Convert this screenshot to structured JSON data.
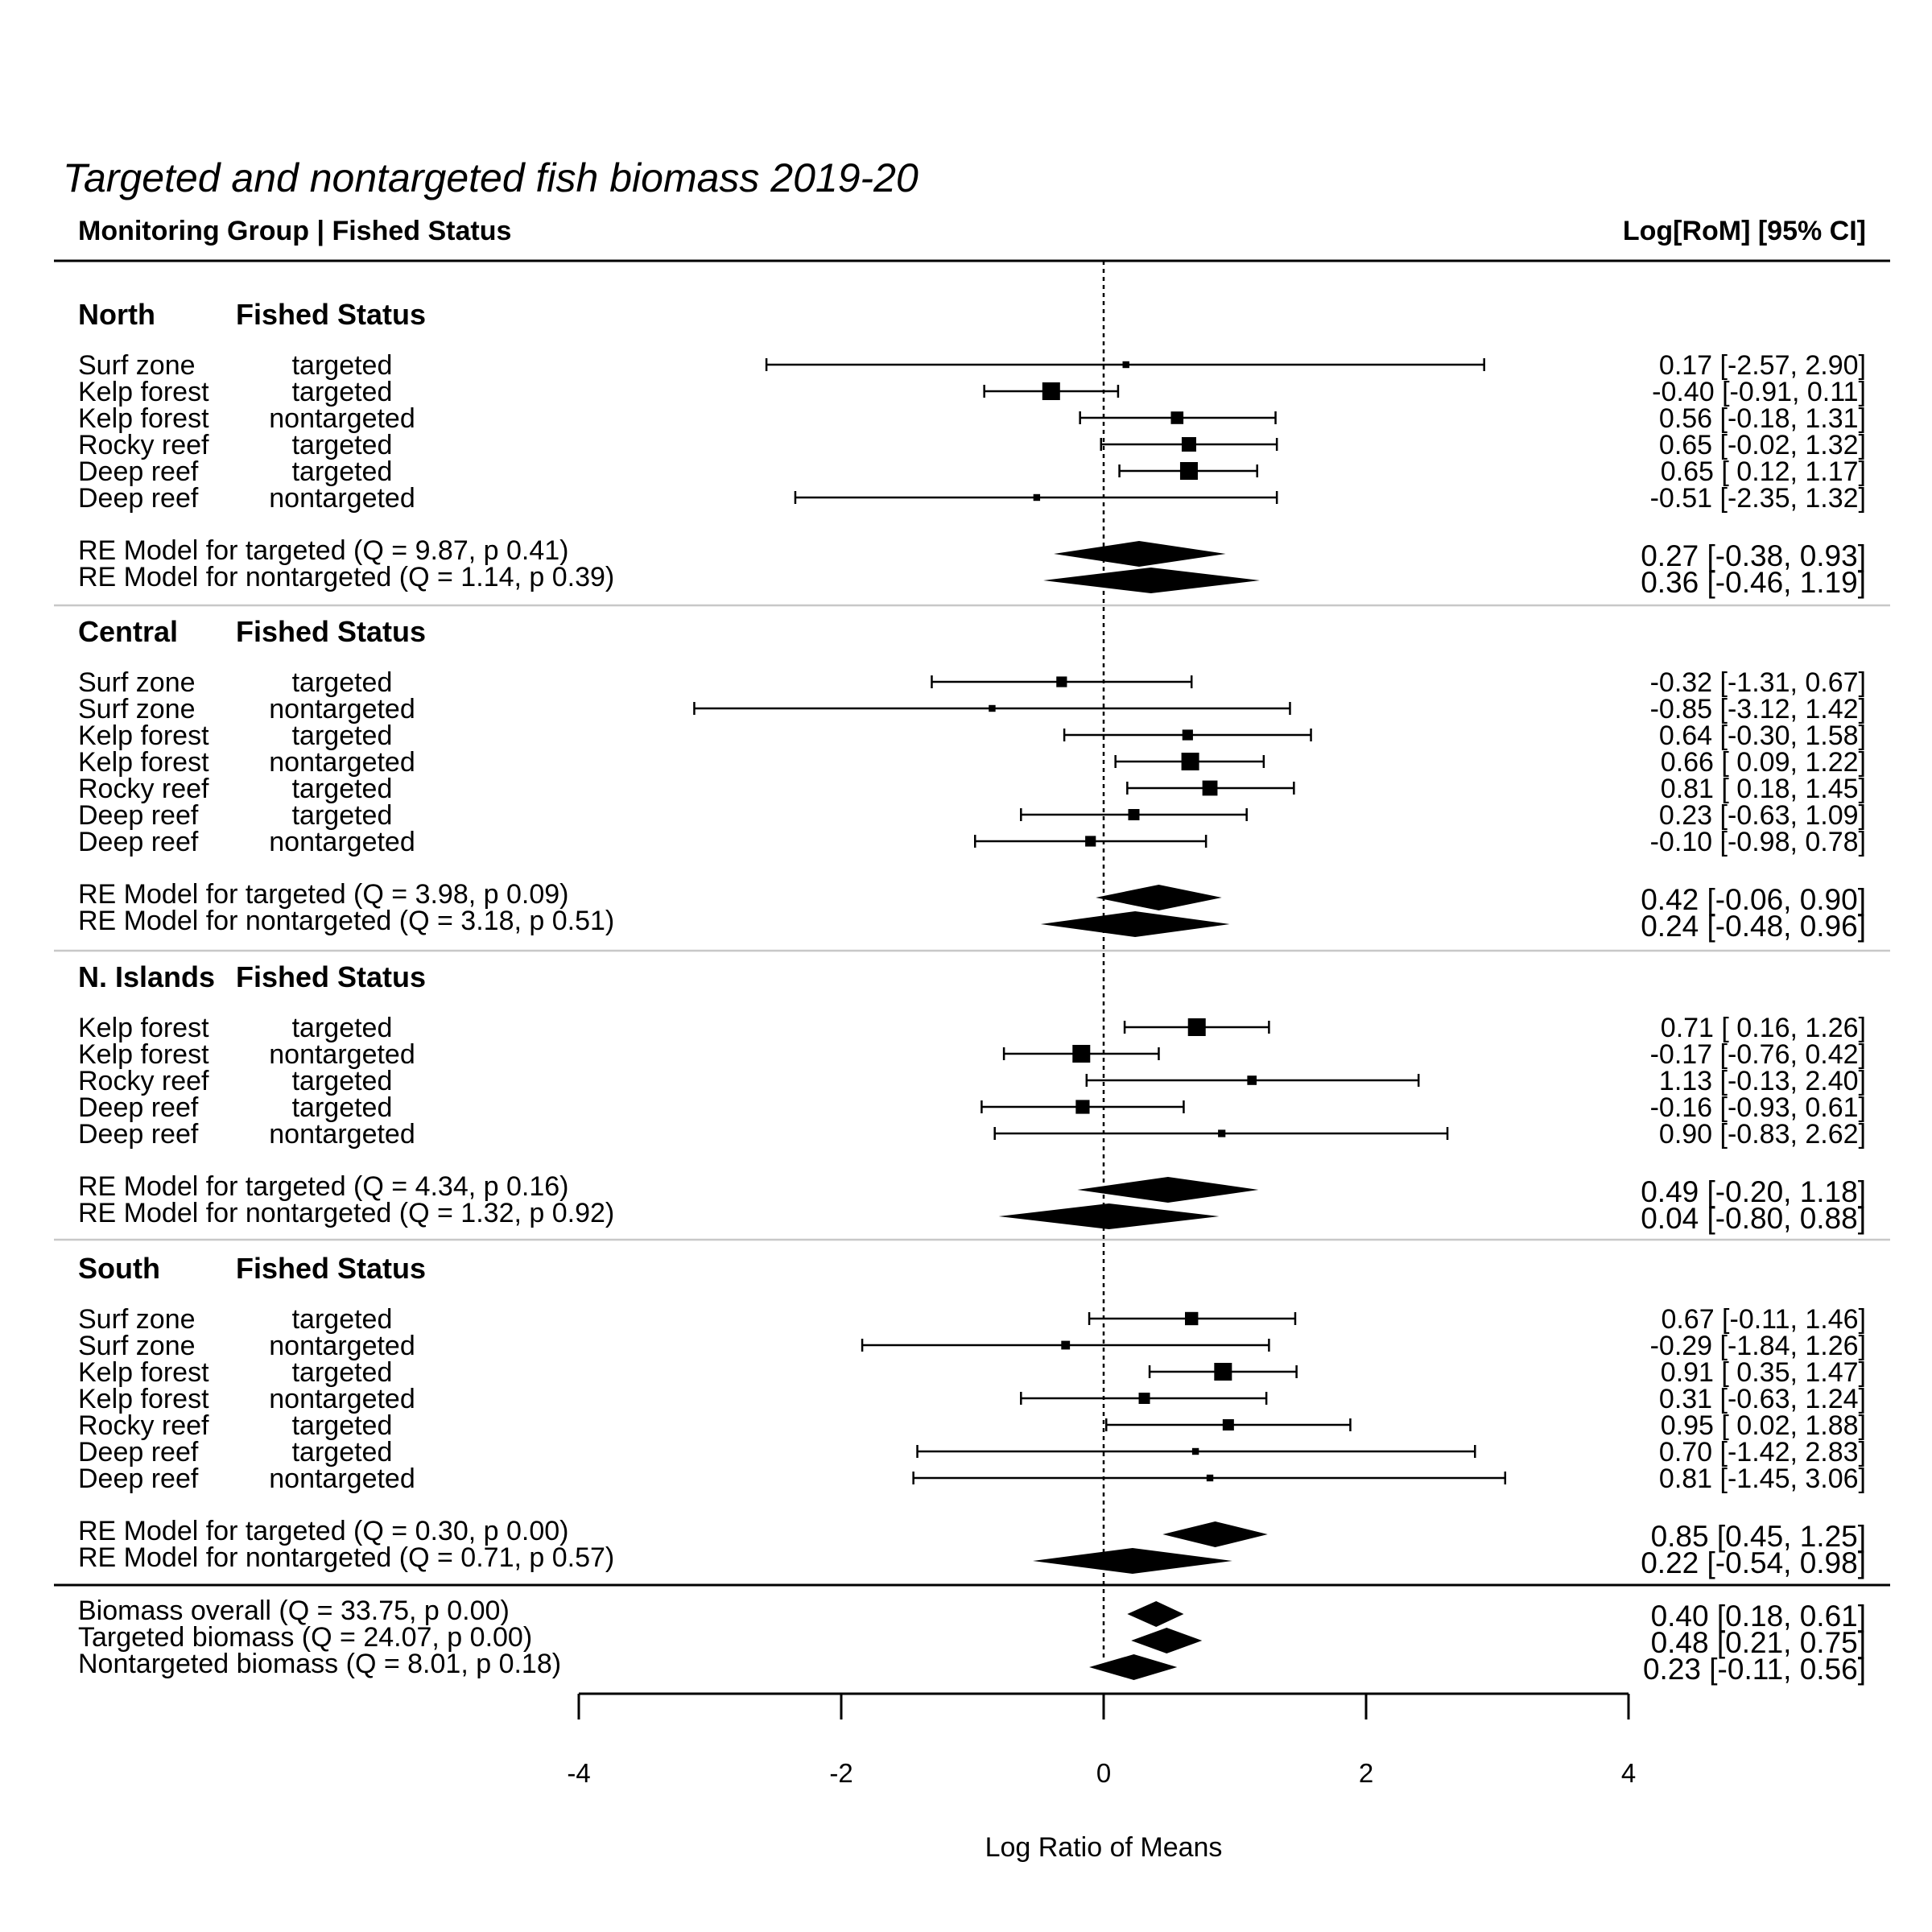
{
  "chart_data": {
    "type": "forest",
    "title": "Targeted and nontargeted fish biomass 2019-20",
    "header_left": "Monitoring Group | Fished Status",
    "header_right": "Log[RoM] [95% CI]",
    "xlabel": "Log Ratio of Means",
    "xlim": [
      -4,
      4
    ],
    "xticks": [
      "-4",
      "-2",
      "0",
      "2",
      "4"
    ],
    "reference_line": 0,
    "groups": [
      {
        "name": "North",
        "subheader": "Fished Status",
        "studies": [
          {
            "habitat": "Surf zone",
            "status": "targeted",
            "est": 0.17,
            "lo": -2.57,
            "hi": 2.9,
            "label": "0.17 [-2.57, 2.90]",
            "w": 0.15
          },
          {
            "habitat": "Kelp forest",
            "status": "targeted",
            "est": -0.4,
            "lo": -0.91,
            "hi": 0.11,
            "label": "-0.40 [-0.91, 0.11]",
            "w": 1.0
          },
          {
            "habitat": "Kelp forest",
            "status": "nontargeted",
            "est": 0.56,
            "lo": -0.18,
            "hi": 1.31,
            "label": "0.56 [-0.18, 1.31]",
            "w": 0.6
          },
          {
            "habitat": "Rocky reef",
            "status": "targeted",
            "est": 0.65,
            "lo": -0.02,
            "hi": 1.32,
            "label": "0.65 [-0.02, 1.32]",
            "w": 0.75
          },
          {
            "habitat": "Deep reef",
            "status": "targeted",
            "est": 0.65,
            "lo": 0.12,
            "hi": 1.17,
            "label": "0.65 [ 0.12, 1.17]",
            "w": 1.0
          },
          {
            "habitat": "Deep reef",
            "status": "nontargeted",
            "est": -0.51,
            "lo": -2.35,
            "hi": 1.32,
            "label": "-0.51 [-2.35, 1.32]",
            "w": 0.15
          }
        ],
        "models": [
          {
            "label": "RE Model for targeted (Q = 9.87, p 0.41)",
            "est": 0.27,
            "lo": -0.38,
            "hi": 0.93,
            "ci": "0.27 [-0.38, 0.93]"
          },
          {
            "label": "RE Model for nontargeted (Q = 1.14, p 0.39)",
            "est": 0.36,
            "lo": -0.46,
            "hi": 1.19,
            "ci": "0.36 [-0.46, 1.19]"
          }
        ]
      },
      {
        "name": "Central",
        "subheader": "Fished Status",
        "studies": [
          {
            "habitat": "Surf zone",
            "status": "targeted",
            "est": -0.32,
            "lo": -1.31,
            "hi": 0.67,
            "label": "-0.32 [-1.31, 0.67]",
            "w": 0.45
          },
          {
            "habitat": "Surf zone",
            "status": "nontargeted",
            "est": -0.85,
            "lo": -3.12,
            "hi": 1.42,
            "label": "-0.85 [-3.12, 1.42]",
            "w": 0.15
          },
          {
            "habitat": "Kelp forest",
            "status": "targeted",
            "est": 0.64,
            "lo": -0.3,
            "hi": 1.58,
            "label": "0.64 [-0.30, 1.58]",
            "w": 0.45
          },
          {
            "habitat": "Kelp forest",
            "status": "nontargeted",
            "est": 0.66,
            "lo": 0.09,
            "hi": 1.22,
            "label": "0.66 [ 0.09, 1.22]",
            "w": 1.0
          },
          {
            "habitat": "Rocky reef",
            "status": "targeted",
            "est": 0.81,
            "lo": 0.18,
            "hi": 1.45,
            "label": "0.81 [ 0.18, 1.45]",
            "w": 0.8
          },
          {
            "habitat": "Deep reef",
            "status": "targeted",
            "est": 0.23,
            "lo": -0.63,
            "hi": 1.09,
            "label": "0.23 [-0.63, 1.09]",
            "w": 0.5
          },
          {
            "habitat": "Deep reef",
            "status": "nontargeted",
            "est": -0.1,
            "lo": -0.98,
            "hi": 0.78,
            "label": "-0.10 [-0.98, 0.78]",
            "w": 0.45
          }
        ],
        "models": [
          {
            "label": "RE Model for targeted (Q = 3.98, p 0.09)",
            "est": 0.42,
            "lo": -0.06,
            "hi": 0.9,
            "ci": "0.42 [-0.06, 0.90]"
          },
          {
            "label": "RE Model for nontargeted (Q = 3.18, p 0.51)",
            "est": 0.24,
            "lo": -0.48,
            "hi": 0.96,
            "ci": "0.24 [-0.48, 0.96]"
          }
        ]
      },
      {
        "name": "N. Islands",
        "subheader": "Fished Status",
        "studies": [
          {
            "habitat": "Kelp forest",
            "status": "targeted",
            "est": 0.71,
            "lo": 0.16,
            "hi": 1.26,
            "label": "0.71 [ 0.16, 1.26]",
            "w": 1.0
          },
          {
            "habitat": "Kelp forest",
            "status": "nontargeted",
            "est": -0.17,
            "lo": -0.76,
            "hi": 0.42,
            "label": "-0.17 [-0.76, 0.42]",
            "w": 1.0
          },
          {
            "habitat": "Rocky reef",
            "status": "targeted",
            "est": 1.13,
            "lo": -0.13,
            "hi": 2.4,
            "label": "1.13 [-0.13, 2.40]",
            "w": 0.35
          },
          {
            "habitat": "Deep reef",
            "status": "targeted",
            "est": -0.16,
            "lo": -0.93,
            "hi": 0.61,
            "label": "-0.16 [-0.93, 0.61]",
            "w": 0.7
          },
          {
            "habitat": "Deep reef",
            "status": "nontargeted",
            "est": 0.9,
            "lo": -0.83,
            "hi": 2.62,
            "label": "0.90 [-0.83, 2.62]",
            "w": 0.2
          }
        ],
        "models": [
          {
            "label": "RE Model for targeted (Q = 4.34, p 0.16)",
            "est": 0.49,
            "lo": -0.2,
            "hi": 1.18,
            "ci": "0.49 [-0.20, 1.18]"
          },
          {
            "label": "RE Model for nontargeted (Q = 1.32, p 0.92)",
            "est": 0.04,
            "lo": -0.8,
            "hi": 0.88,
            "ci": "0.04 [-0.80, 0.88]"
          }
        ]
      },
      {
        "name": "South",
        "subheader": "Fished Status",
        "studies": [
          {
            "habitat": "Surf zone",
            "status": "targeted",
            "est": 0.67,
            "lo": -0.11,
            "hi": 1.46,
            "label": "0.67 [-0.11, 1.46]",
            "w": 0.65
          },
          {
            "habitat": "Surf zone",
            "status": "nontargeted",
            "est": -0.29,
            "lo": -1.84,
            "hi": 1.26,
            "label": "-0.29 [-1.84, 1.26]",
            "w": 0.3
          },
          {
            "habitat": "Kelp forest",
            "status": "targeted",
            "est": 0.91,
            "lo": 0.35,
            "hi": 1.47,
            "label": "0.91 [ 0.35, 1.47]",
            "w": 1.0
          },
          {
            "habitat": "Kelp forest",
            "status": "nontargeted",
            "est": 0.31,
            "lo": -0.63,
            "hi": 1.24,
            "label": "0.31 [-0.63, 1.24]",
            "w": 0.5
          },
          {
            "habitat": "Rocky reef",
            "status": "targeted",
            "est": 0.95,
            "lo": 0.02,
            "hi": 1.88,
            "label": "0.95 [ 0.02, 1.88]",
            "w": 0.5
          },
          {
            "habitat": "Deep reef",
            "status": "targeted",
            "est": 0.7,
            "lo": -1.42,
            "hi": 2.83,
            "label": "0.70 [-1.42, 2.83]",
            "w": 0.15
          },
          {
            "habitat": "Deep reef",
            "status": "nontargeted",
            "est": 0.81,
            "lo": -1.45,
            "hi": 3.06,
            "label": "0.81 [-1.45, 3.06]",
            "w": 0.15
          }
        ],
        "models": [
          {
            "label": "RE Model for targeted (Q = 0.30, p 0.00)",
            "est": 0.85,
            "lo": 0.45,
            "hi": 1.25,
            "ci": "0.85 [0.45, 1.25]"
          },
          {
            "label": "RE Model for nontargeted (Q = 0.71, p 0.57)",
            "est": 0.22,
            "lo": -0.54,
            "hi": 0.98,
            "ci": "0.22 [-0.54, 0.98]"
          }
        ]
      }
    ],
    "overall": [
      {
        "label": "Biomass overall (Q = 33.75, p 0.00)",
        "est": 0.4,
        "lo": 0.18,
        "hi": 0.61,
        "ci": "0.40 [0.18, 0.61]"
      },
      {
        "label": "Targeted biomass (Q = 24.07, p 0.00)",
        "est": 0.48,
        "lo": 0.21,
        "hi": 0.75,
        "ci": "0.48 [0.21, 0.75]"
      },
      {
        "label": "Nontargeted biomass (Q = 8.01, p 0.18)",
        "est": 0.23,
        "lo": -0.11,
        "hi": 0.56,
        "ci": "0.23 [-0.11, 0.56]"
      }
    ],
    "colors": {
      "marks": "#000000",
      "separator": "#c8c8c8",
      "rule": "#000000"
    }
  }
}
